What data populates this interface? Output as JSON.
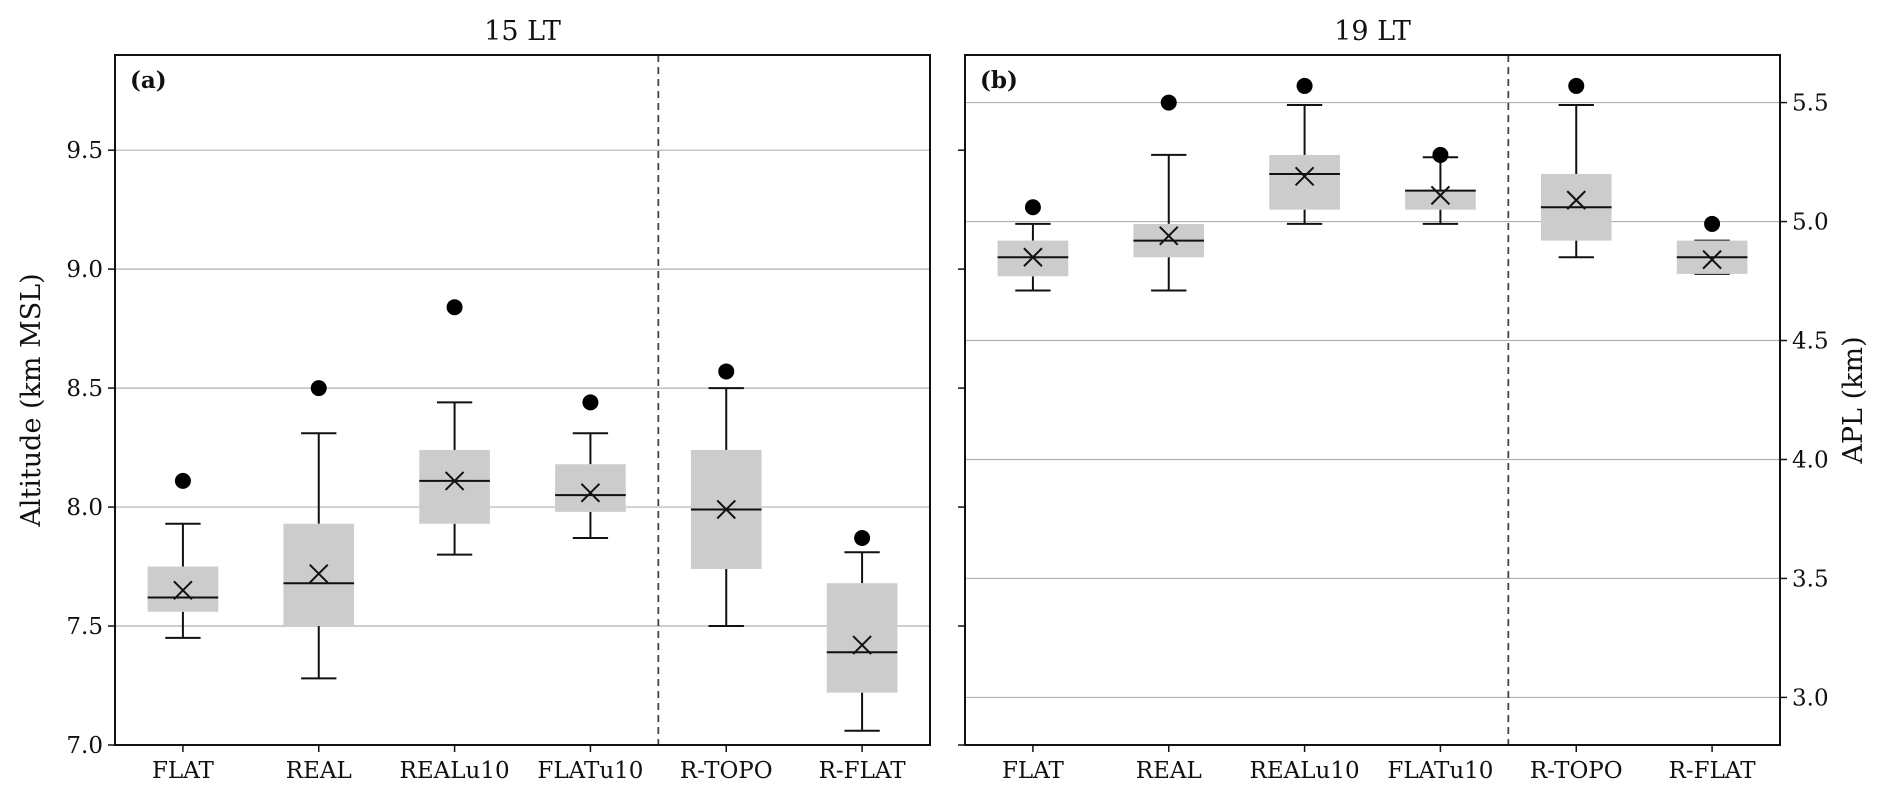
{
  "chart_data": [
    {
      "type": "box",
      "panel_label": "(a)",
      "title": "15 LT",
      "ylabel": "Altitude (km MSL)",
      "ylim": [
        7.0,
        9.9
      ],
      "yticks": [
        "7.0",
        "7.5",
        "8.0",
        "8.5",
        "9.0",
        "9.5"
      ],
      "grid": true,
      "separator_after_category_index": 3,
      "categories": [
        "FLAT",
        "REAL",
        "REALu10",
        "FLATu10",
        "R-TOPO",
        "R-FLAT"
      ],
      "boxes": [
        {
          "whisker_low": 7.45,
          "q1": 7.56,
          "median": 7.62,
          "q3": 7.75,
          "whisker_high": 7.93,
          "mean": 7.65,
          "outlier": 8.11
        },
        {
          "whisker_low": 7.28,
          "q1": 7.5,
          "median": 7.68,
          "q3": 7.93,
          "whisker_high": 8.31,
          "mean": 7.72,
          "outlier": 8.5
        },
        {
          "whisker_low": 7.8,
          "q1": 7.93,
          "median": 8.11,
          "q3": 8.24,
          "whisker_high": 8.44,
          "mean": 8.11,
          "outlier": 8.84
        },
        {
          "whisker_low": 7.87,
          "q1": 7.98,
          "median": 8.05,
          "q3": 8.18,
          "whisker_high": 8.31,
          "mean": 8.06,
          "outlier": 8.44
        },
        {
          "whisker_low": 7.5,
          "q1": 7.74,
          "median": 7.99,
          "q3": 8.24,
          "whisker_high": 8.5,
          "mean": 7.99,
          "outlier": 8.57
        },
        {
          "whisker_low": 7.06,
          "q1": 7.22,
          "median": 7.39,
          "q3": 7.68,
          "whisker_high": 7.81,
          "mean": 7.42,
          "outlier": 7.87
        }
      ]
    },
    {
      "type": "box",
      "panel_label": "(b)",
      "title": "19 LT",
      "ylabel": "APL (km)",
      "ylim": [
        2.8,
        5.7
      ],
      "yticks": [
        "3.0",
        "3.5",
        "4.0",
        "4.5",
        "5.0",
        "5.5"
      ],
      "grid": true,
      "separator_after_category_index": 3,
      "categories": [
        "FLAT",
        "REAL",
        "REALu10",
        "FLATu10",
        "R-TOPO",
        "R-FLAT"
      ],
      "boxes": [
        {
          "whisker_low": 4.71,
          "q1": 4.77,
          "median": 4.85,
          "q3": 4.92,
          "whisker_high": 4.99,
          "mean": 4.85,
          "outlier": 5.06
        },
        {
          "whisker_low": 4.71,
          "q1": 4.85,
          "median": 4.92,
          "q3": 4.99,
          "whisker_high": 5.28,
          "mean": 4.94,
          "outlier": 5.5
        },
        {
          "whisker_low": 4.99,
          "q1": 5.05,
          "median": 5.2,
          "q3": 5.28,
          "whisker_high": 5.49,
          "mean": 5.19,
          "outlier": 5.57
        },
        {
          "whisker_low": 4.99,
          "q1": 5.05,
          "median": 5.13,
          "q3": 5.13,
          "whisker_high": 5.27,
          "mean": 5.11,
          "outlier": 5.28
        },
        {
          "whisker_low": 4.85,
          "q1": 4.92,
          "median": 5.06,
          "q3": 5.2,
          "whisker_high": 5.49,
          "mean": 5.09,
          "outlier": 5.57
        },
        {
          "whisker_low": 4.78,
          "q1": 4.78,
          "median": 4.85,
          "q3": 4.92,
          "whisker_high": 4.92,
          "mean": 4.84,
          "outlier": 4.99
        }
      ]
    }
  ]
}
